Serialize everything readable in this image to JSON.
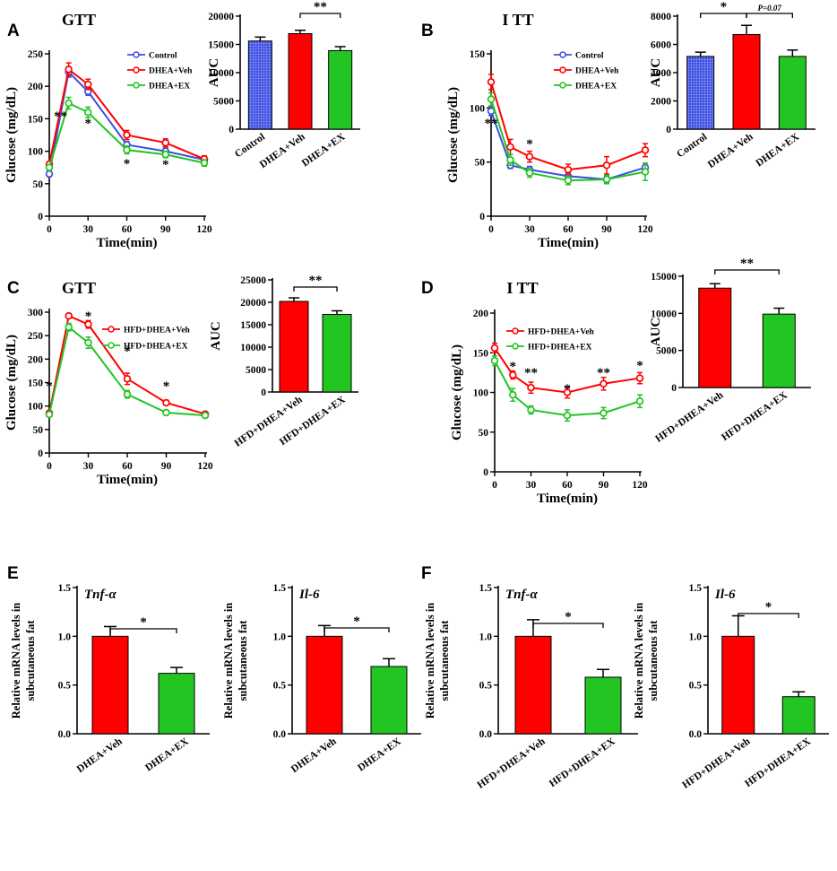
{
  "colors": {
    "Control": "#3d4fe0",
    "DHEA+Veh": "#ff0000",
    "DHEA+EX": "#22c522",
    "HFD+DHEA+Veh": "#ff0000",
    "HFD+DHEA+EX": "#22c522"
  },
  "chart_data": [
    {
      "id": "A_line",
      "panel": "A",
      "type": "line",
      "title": "GTT",
      "xlabel": "Time(min)",
      "ylabel": "Glucose (mg/dL)",
      "x": [
        0,
        15,
        30,
        60,
        90,
        120
      ],
      "xticks": [
        "0",
        "30",
        "60",
        "90",
        "120"
      ],
      "xlim": [
        0,
        120
      ],
      "yticks": [
        "0",
        "50",
        "100",
        "150",
        "200",
        "250"
      ],
      "ylim": [
        0,
        250
      ],
      "series": [
        {
          "name": "Control",
          "values": [
            65,
            222,
            192,
            110,
            100,
            87
          ],
          "err": [
            4,
            8,
            6,
            5,
            5,
            4
          ]
        },
        {
          "name": "DHEA+Veh",
          "values": [
            80,
            226,
            203,
            125,
            113,
            88
          ],
          "err": [
            4,
            10,
            8,
            7,
            6,
            5
          ]
        },
        {
          "name": "DHEA+EX",
          "values": [
            75,
            174,
            160,
            102,
            95,
            82
          ],
          "err": [
            4,
            9,
            8,
            6,
            5,
            5
          ]
        }
      ],
      "annotations": [
        {
          "x": 15,
          "text": "**"
        },
        {
          "x": 30,
          "text": "*"
        },
        {
          "x": 60,
          "text": "*"
        },
        {
          "x": 90,
          "text": "*"
        }
      ]
    },
    {
      "id": "A_bar",
      "panel": "A",
      "type": "bar",
      "ylabel": "AUC",
      "categories": [
        "Control",
        "DHEA+Veh",
        "DHEA+EX"
      ],
      "values": [
        15600,
        16900,
        13900
      ],
      "err": [
        700,
        600,
        700
      ],
      "yticks": [
        "0",
        "5000",
        "10000",
        "15000",
        "20000"
      ],
      "ylim": [
        0,
        20000
      ],
      "patterned": [
        true,
        false,
        false
      ],
      "significance": [
        {
          "from": 1,
          "to": 2,
          "text": "**"
        }
      ]
    },
    {
      "id": "B_line",
      "panel": "B",
      "type": "line",
      "title": "I TT",
      "xlabel": "Time(min)",
      "ylabel": "Glucose (mg/dL)",
      "x": [
        0,
        15,
        30,
        60,
        90,
        120
      ],
      "xticks": [
        "0",
        "30",
        "60",
        "90",
        "120"
      ],
      "xlim": [
        0,
        120
      ],
      "yticks": [
        "0",
        "50",
        "100",
        "150"
      ],
      "ylim": [
        0,
        150
      ],
      "series": [
        {
          "name": "Control",
          "values": [
            97,
            47,
            43,
            37,
            34,
            45
          ],
          "err": [
            4,
            3,
            3,
            3,
            3,
            4
          ]
        },
        {
          "name": "DHEA+Veh",
          "values": [
            124,
            64,
            55,
            43,
            47,
            61
          ],
          "err": [
            7,
            7,
            5,
            5,
            8,
            6
          ]
        },
        {
          "name": "DHEA+EX",
          "values": [
            108,
            52,
            40,
            33,
            34,
            41
          ],
          "err": [
            6,
            5,
            4,
            4,
            4,
            8
          ]
        }
      ],
      "annotations": [
        {
          "x": 0,
          "text": "**"
        },
        {
          "x": 30,
          "text": "*"
        }
      ]
    },
    {
      "id": "B_bar",
      "panel": "B",
      "type": "bar",
      "ylabel": "AUC",
      "categories": [
        "Control",
        "DHEA+Veh",
        "DHEA+EX"
      ],
      "values": [
        5150,
        6700,
        5150
      ],
      "err": [
        300,
        650,
        450
      ],
      "yticks": [
        "0",
        "2000",
        "4000",
        "6000",
        "8000"
      ],
      "ylim": [
        0,
        8000
      ],
      "patterned": [
        true,
        false,
        false
      ],
      "significance": [
        {
          "from": 0,
          "to": 1,
          "text": "*"
        },
        {
          "from": 1,
          "to": 2,
          "text": "P=0.07"
        }
      ]
    },
    {
      "id": "C_line",
      "panel": "C",
      "type": "line",
      "title": "GTT",
      "xlabel": "Time(min)",
      "ylabel": "Glucose (mg/dL)",
      "x": [
        0,
        15,
        30,
        60,
        90,
        120
      ],
      "xticks": [
        "0",
        "30",
        "60",
        "90",
        "120"
      ],
      "xlim": [
        0,
        120
      ],
      "yticks": [
        "0",
        "50",
        "100",
        "150",
        "200",
        "250",
        "300"
      ],
      "ylim": [
        0,
        300
      ],
      "series": [
        {
          "name": "HFD+DHEA+Veh",
          "values": [
            85,
            292,
            274,
            158,
            107,
            83
          ],
          "err": [
            4,
            4,
            8,
            12,
            5,
            4
          ]
        },
        {
          "name": "HFD+DHEA+EX",
          "values": [
            82,
            268,
            235,
            125,
            86,
            80
          ],
          "err": [
            4,
            8,
            12,
            8,
            5,
            4
          ]
        }
      ],
      "annotations": [
        {
          "x": 0,
          "text": "*"
        },
        {
          "x": 30,
          "text": "*"
        },
        {
          "x": 60,
          "text": "*"
        },
        {
          "x": 90,
          "text": "*"
        }
      ]
    },
    {
      "id": "C_bar",
      "panel": "C",
      "type": "bar",
      "ylabel": "AUC",
      "categories": [
        "HFD+DHEA+Veh",
        "HFD+DHEA+EX"
      ],
      "values": [
        20200,
        17300
      ],
      "err": [
        800,
        800
      ],
      "yticks": [
        "0",
        "5000",
        "10000",
        "15000",
        "20000",
        "25000"
      ],
      "ylim": [
        0,
        25000
      ],
      "patterned": [
        false,
        false
      ],
      "significance": [
        {
          "from": 0,
          "to": 1,
          "text": "**"
        }
      ]
    },
    {
      "id": "D_line",
      "panel": "D",
      "type": "line",
      "title": "I TT",
      "xlabel": "Time(min)",
      "ylabel": "Glucose (mg/dL)",
      "x": [
        0,
        15,
        30,
        60,
        90,
        120
      ],
      "xticks": [
        "0",
        "30",
        "60",
        "90",
        "120"
      ],
      "xlim": [
        0,
        120
      ],
      "yticks": [
        "0",
        "50",
        "100",
        "150",
        "200"
      ],
      "ylim": [
        0,
        200
      ],
      "series": [
        {
          "name": "HFD+DHEA+Veh",
          "values": [
            156,
            122,
            106,
            100,
            111,
            118
          ],
          "err": [
            6,
            5,
            7,
            7,
            8,
            7
          ]
        },
        {
          "name": "HFD+DHEA+EX",
          "values": [
            140,
            97,
            78,
            71,
            74,
            89
          ],
          "err": [
            6,
            8,
            5,
            7,
            7,
            8
          ]
        }
      ],
      "annotations": [
        {
          "x": 15,
          "text": "*"
        },
        {
          "x": 30,
          "text": "**"
        },
        {
          "x": 60,
          "text": "*"
        },
        {
          "x": 90,
          "text": "**"
        },
        {
          "x": 120,
          "text": "*"
        }
      ]
    },
    {
      "id": "D_bar",
      "panel": "D",
      "type": "bar",
      "ylabel": "AUC",
      "categories": [
        "HFD+DHEA+Veh",
        "HFD+DHEA+EX"
      ],
      "values": [
        13400,
        9900
      ],
      "err": [
        600,
        800
      ],
      "yticks": [
        "0",
        "5000",
        "10000",
        "15000"
      ],
      "ylim": [
        0,
        15000
      ],
      "patterned": [
        false,
        false
      ],
      "significance": [
        {
          "from": 0,
          "to": 1,
          "text": "**"
        }
      ]
    },
    {
      "id": "E1",
      "panel": "E",
      "type": "bar",
      "gene": "Tnf-α",
      "ylabel": "Relative mRNA levels in subcutaneous fat",
      "categories": [
        "DHEA+Veh",
        "DHEA+EX"
      ],
      "values": [
        1.0,
        0.62
      ],
      "err": [
        0.1,
        0.06
      ],
      "yticks": [
        "0.0",
        "0.5",
        "1.0",
        "1.5"
      ],
      "ylim": [
        0,
        1.5
      ],
      "patterned": [
        false,
        false
      ],
      "significance": [
        {
          "from": 0,
          "to": 1,
          "text": "*"
        }
      ]
    },
    {
      "id": "E2",
      "panel": "E",
      "type": "bar",
      "gene": "Il-6",
      "ylabel": "Relative mRNA levels in subcutaneous fat",
      "categories": [
        "DHEA+Veh",
        "DHEA+EX"
      ],
      "values": [
        1.0,
        0.69
      ],
      "err": [
        0.11,
        0.08
      ],
      "yticks": [
        "0.0",
        "0.5",
        "1.0",
        "1.5"
      ],
      "ylim": [
        0,
        1.5
      ],
      "patterned": [
        false,
        false
      ],
      "significance": [
        {
          "from": 0,
          "to": 1,
          "text": "*"
        }
      ]
    },
    {
      "id": "F1",
      "panel": "F",
      "type": "bar",
      "gene": "Tnf-α",
      "ylabel": "Relative mRNA levels in subcutaneous fat",
      "categories": [
        "HFD+DHEA+Veh",
        "HFD+DHEA+EX"
      ],
      "values": [
        1.0,
        0.58
      ],
      "err": [
        0.17,
        0.08
      ],
      "yticks": [
        "0.0",
        "0.5",
        "1.0",
        "1.5"
      ],
      "ylim": [
        0,
        1.5
      ],
      "patterned": [
        false,
        false
      ],
      "significance": [
        {
          "from": 0,
          "to": 1,
          "text": "*"
        }
      ]
    },
    {
      "id": "F2",
      "panel": "F",
      "type": "bar",
      "gene": "Il-6",
      "ylabel": "Relative mRNA levels in subcutaneous fat",
      "categories": [
        "HFD+DHEA+Veh",
        "HFD+DHEA+EX"
      ],
      "values": [
        1.0,
        0.38
      ],
      "err": [
        0.21,
        0.05
      ],
      "yticks": [
        "0.0",
        "0.5",
        "1.0",
        "1.5"
      ],
      "ylim": [
        0,
        1.5
      ],
      "patterned": [
        false,
        false
      ],
      "significance": [
        {
          "from": 0,
          "to": 1,
          "text": "*"
        }
      ]
    }
  ]
}
